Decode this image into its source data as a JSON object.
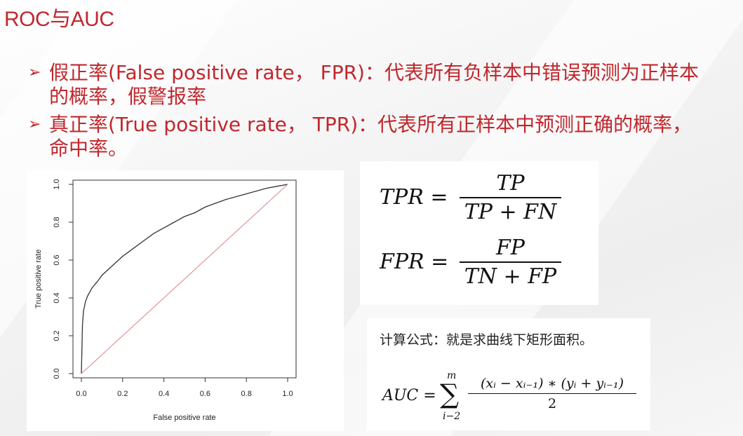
{
  "title": "ROC与AUC",
  "bullets": [
    {
      "line1": "假正率(False positive rate， FPR)：代表所有负样本中错误预测为正样本",
      "line2": "的概率，假警报率"
    },
    {
      "line1": "真正率(True positive rate， TPR)：代表所有正样本中预测正确的概率，",
      "line2": "命中率。"
    }
  ],
  "chart_data": {
    "type": "line",
    "xlabel": "False positive rate",
    "ylabel": "True positive rate",
    "xlim": [
      0,
      1
    ],
    "ylim": [
      0,
      1
    ],
    "xticks": [
      "0.0",
      "0.2",
      "0.4",
      "0.6",
      "0.8",
      "1.0"
    ],
    "yticks": [
      "0.0",
      "0.2",
      "0.4",
      "0.6",
      "0.8",
      "1.0"
    ],
    "series": [
      {
        "color": "#333333",
        "x": [
          0,
          0.005,
          0.01,
          0.02,
          0.03,
          0.05,
          0.08,
          0.1,
          0.15,
          0.2,
          0.25,
          0.3,
          0.35,
          0.4,
          0.45,
          0.5,
          0.55,
          0.6,
          0.7,
          0.8,
          0.9,
          0.95,
          1.0
        ],
        "y": [
          0,
          0.25,
          0.33,
          0.38,
          0.41,
          0.45,
          0.49,
          0.52,
          0.57,
          0.62,
          0.66,
          0.7,
          0.74,
          0.77,
          0.8,
          0.83,
          0.85,
          0.88,
          0.92,
          0.95,
          0.98,
          0.99,
          1.0
        ]
      },
      {
        "color": "#e08080",
        "x": [
          0,
          1
        ],
        "y": [
          0,
          1
        ]
      }
    ]
  },
  "formulas": {
    "tpr": {
      "lhs": "TPR =",
      "num": "TP",
      "den": "TP + FN"
    },
    "fpr": {
      "lhs": "FPR =",
      "num": "FP",
      "den": "TN + FP"
    }
  },
  "auc": {
    "caption": "计算公式：就是求曲线下矩形面积。",
    "lhs": "AUC =",
    "sum_upper": "m",
    "sum_symbol": "∑",
    "sum_lower": "i−2",
    "num": "(xᵢ − xᵢ₋₁) ∗ (yᵢ + yᵢ₋₁)",
    "den": "2"
  },
  "colors": {
    "accent": "#c0272d"
  }
}
